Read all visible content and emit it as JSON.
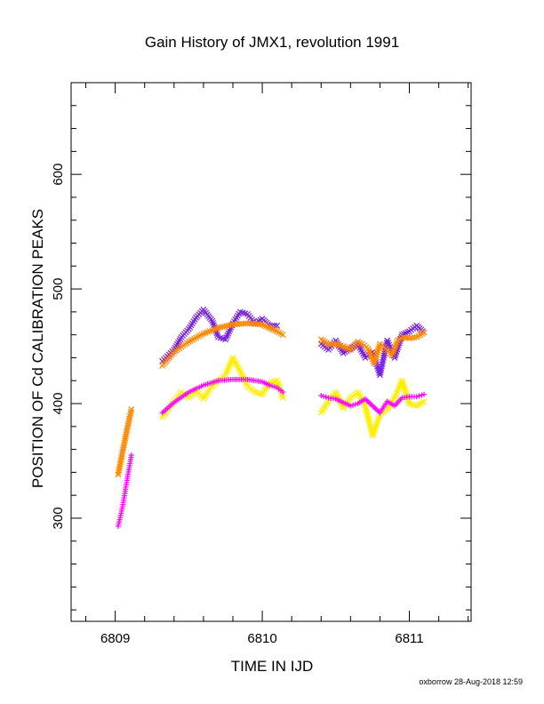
{
  "chart_data": {
    "type": "scatter",
    "title": "Gain History of JMX1, revolution 1991",
    "xlabel": "TIME IN IJD",
    "ylabel": "POSITION OF Cd CALIBRATION PEAKS",
    "footer": "oxborrow 28-Aug-2018 12:59",
    "xlim": [
      6808.7,
      6811.42
    ],
    "ylim": [
      210,
      680
    ],
    "xticks": [
      6809,
      6810,
      6811
    ],
    "yticks": [
      300,
      400,
      500,
      600
    ],
    "grid": false,
    "legend": "none",
    "series": [
      {
        "color": "#7722dd",
        "marker": "x",
        "segments": [
          {
            "x": [
              6809.32,
              6809.4,
              6809.45,
              6809.5,
              6809.55,
              6809.6,
              6809.66,
              6809.7,
              6809.75,
              6809.8,
              6809.85,
              6809.9,
              6809.95,
              6810.0,
              6810.05,
              6810.1
            ],
            "y": [
              437,
              447,
              458,
              465,
              475,
              482,
              472,
              458,
              456,
              470,
              480,
              478,
              470,
              474,
              468,
              468
            ]
          },
          {
            "x": [
              6810.4,
              6810.45,
              6810.5,
              6810.55,
              6810.6,
              6810.65,
              6810.7,
              6810.75,
              6810.8,
              6810.85,
              6810.9,
              6810.95,
              6811.0,
              6811.05,
              6811.1
            ],
            "y": [
              452,
              447,
              455,
              444,
              448,
              452,
              440,
              445,
              425,
              455,
              440,
              460,
              463,
              468,
              462
            ]
          }
        ]
      },
      {
        "color": "#ff8800",
        "marker": "x",
        "segments": [
          {
            "x": [
              6809.02,
              6809.05,
              6809.08,
              6809.11
            ],
            "y": [
              338,
              358,
              377,
              395
            ]
          },
          {
            "x": [
              6809.32,
              6809.4,
              6809.5,
              6809.6,
              6809.7,
              6809.8,
              6809.9,
              6810.0,
              6810.05,
              6810.1,
              6810.14
            ],
            "y": [
              433,
              445,
              454,
              461,
              466,
              469,
              470,
              469,
              466,
              463,
              460
            ]
          },
          {
            "x": [
              6810.4,
              6810.45,
              6810.5,
              6810.55,
              6810.6,
              6810.65,
              6810.68,
              6810.72,
              6810.76,
              6810.8,
              6810.84,
              6810.88,
              6810.92,
              6810.96,
              6811.0,
              6811.05,
              6811.1
            ],
            "y": [
              456,
              452,
              452,
              450,
              447,
              454,
              452,
              448,
              435,
              452,
              448,
              442,
              455,
              458,
              457,
              458,
              462
            ]
          }
        ]
      },
      {
        "color": "#ffee00",
        "marker": "x",
        "segments": [
          {
            "x": [
              6809.32,
              6809.4,
              6809.45,
              6809.5,
              6809.55,
              6809.6,
              6809.65,
              6809.7,
              6809.75,
              6809.8,
              6809.85,
              6809.9,
              6809.95,
              6810.0,
              6810.05,
              6810.1,
              6810.14
            ],
            "y": [
              388,
              402,
              410,
              405,
              412,
              404,
              414,
              420,
              425,
              440,
              428,
              415,
              410,
              408,
              418,
              420,
              405
            ]
          },
          {
            "x": [
              6810.4,
              6810.45,
              6810.5,
              6810.55,
              6810.6,
              6810.65,
              6810.7,
              6810.75,
              6810.8,
              6810.85,
              6810.9,
              6810.95,
              6811.0,
              6811.05,
              6811.1
            ],
            "y": [
              392,
              402,
              410,
              396,
              405,
              410,
              398,
              372,
              390,
              395,
              405,
              420,
              400,
              398,
              402
            ]
          }
        ]
      },
      {
        "color": "#ff00ff",
        "marker": "+",
        "segments": [
          {
            "x": [
              6809.02,
              6809.05,
              6809.08,
              6809.11
            ],
            "y": [
              293,
              310,
              333,
              355
            ]
          },
          {
            "x": [
              6809.32,
              6809.4,
              6809.5,
              6809.6,
              6809.7,
              6809.8,
              6809.9,
              6810.0,
              6810.05,
              6810.1,
              6810.14
            ],
            "y": [
              392,
              401,
              410,
              416,
              420,
              421,
              421,
              419,
              416,
              414,
              410
            ]
          },
          {
            "x": [
              6810.4,
              6810.45,
              6810.5,
              6810.55,
              6810.6,
              6810.65,
              6810.7,
              6810.75,
              6810.8,
              6810.85,
              6810.9,
              6810.95,
              6811.0,
              6811.05,
              6811.1
            ],
            "y": [
              407,
              405,
              404,
              401,
              398,
              400,
              404,
              398,
              392,
              402,
              398,
              405,
              406,
              406,
              408
            ]
          }
        ]
      }
    ]
  }
}
